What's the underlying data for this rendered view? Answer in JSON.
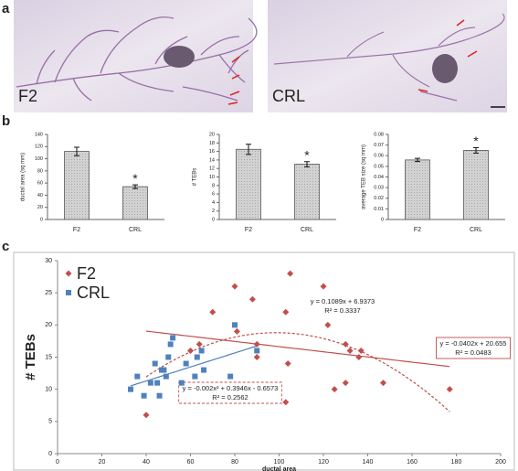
{
  "panel_labels": [
    "a",
    "b",
    "c"
  ],
  "photo_labels": [
    "F2",
    "CRL"
  ],
  "chart_data": [
    {
      "type": "bar",
      "ylabel": "ductal area (sq mm)",
      "categories": [
        "F2",
        "CRL"
      ],
      "values": [
        112,
        54
      ],
      "errors": [
        7,
        3
      ],
      "significance": [
        null,
        "*"
      ],
      "color": "#c4c4c4",
      "ylim": [
        0,
        140
      ],
      "yticks": [
        0,
        20,
        40,
        60,
        80,
        100,
        120,
        140
      ]
    },
    {
      "type": "bar",
      "ylabel": "# TEBs",
      "categories": [
        "F2",
        "CRL"
      ],
      "values": [
        16.5,
        13
      ],
      "errors": [
        1.2,
        0.6
      ],
      "significance": [
        null,
        "*"
      ],
      "color": "#c4c4c4",
      "ylim": [
        0,
        20
      ],
      "yticks": [
        0,
        2,
        4,
        6,
        8,
        10,
        12,
        14,
        16,
        18,
        20
      ]
    },
    {
      "type": "bar",
      "ylabel": "average TEB size (sq mm)",
      "categories": [
        "F2",
        "CRL"
      ],
      "values": [
        0.056,
        0.065
      ],
      "errors": [
        0.0015,
        0.0025
      ],
      "significance": [
        null,
        "*"
      ],
      "color": "#c4c4c4",
      "ylim": [
        0,
        0.08
      ],
      "yticks": [
        0,
        0.01,
        0.02,
        0.03,
        0.04,
        0.05,
        0.06,
        0.07,
        0.08
      ]
    },
    {
      "type": "scatter",
      "xlabel": "ductal area",
      "ylabel": "# TEBs",
      "xlim": [
        0,
        200
      ],
      "xticks": [
        0,
        20,
        40,
        60,
        80,
        100,
        120,
        140,
        160,
        180,
        200
      ],
      "ylim": [
        0,
        30
      ],
      "yticks": [
        0,
        5,
        10,
        15,
        20,
        25,
        30
      ],
      "legend": "upper left",
      "series": [
        {
          "name": "F2",
          "color": "#c0504d",
          "marker": "diamond",
          "x": [
            40,
            60,
            64,
            70,
            80,
            81,
            88,
            90,
            90,
            103,
            103,
            104,
            105,
            120,
            122,
            125,
            130,
            130,
            132,
            136,
            137,
            147,
            177
          ],
          "y": [
            6,
            16,
            17,
            22,
            26,
            19,
            24,
            15,
            17,
            22,
            8,
            14,
            28,
            26,
            20,
            10,
            11,
            17,
            16,
            15,
            16,
            11,
            10
          ],
          "trendlines": [
            {
              "fit": "linear",
              "coef": [
                -0.0402,
                20.655
              ],
              "x_range": [
                40,
                177
              ],
              "style": "solid",
              "box": "solid",
              "label": [
                "y = -0.0402x + 20.655",
                "R² = 0.0483"
              ]
            },
            {
              "fit": "polynomial",
              "coef": [
                -0.002,
                0.3946,
                -0.6573
              ],
              "x_range": [
                40,
                177
              ],
              "style": "dashed",
              "box": "dashed",
              "label": [
                "y = -0.002x² + 0.3946x - 0.6573",
                "R² = 0.2562"
              ]
            }
          ]
        },
        {
          "name": "CRL",
          "color": "#4f81bd",
          "marker": "square",
          "x": [
            33,
            36,
            39,
            42,
            44,
            45,
            46,
            47,
            48,
            49,
            50,
            51,
            52,
            56,
            58,
            62,
            63,
            65,
            66,
            78,
            80,
            90
          ],
          "y": [
            10,
            12,
            9,
            11,
            14,
            11,
            9,
            13,
            13,
            12,
            15,
            17,
            18,
            11,
            14,
            12,
            15,
            16,
            13,
            12,
            20,
            16
          ],
          "trendlines": [
            {
              "fit": "linear",
              "coef": [
                0.1089,
                6.9373
              ],
              "x_range": [
                33,
                90
              ],
              "style": "solid",
              "box": null,
              "label": [
                "y = 0.1089x + 6.9373",
                "R² = 0.3337"
              ]
            }
          ]
        }
      ]
    }
  ]
}
